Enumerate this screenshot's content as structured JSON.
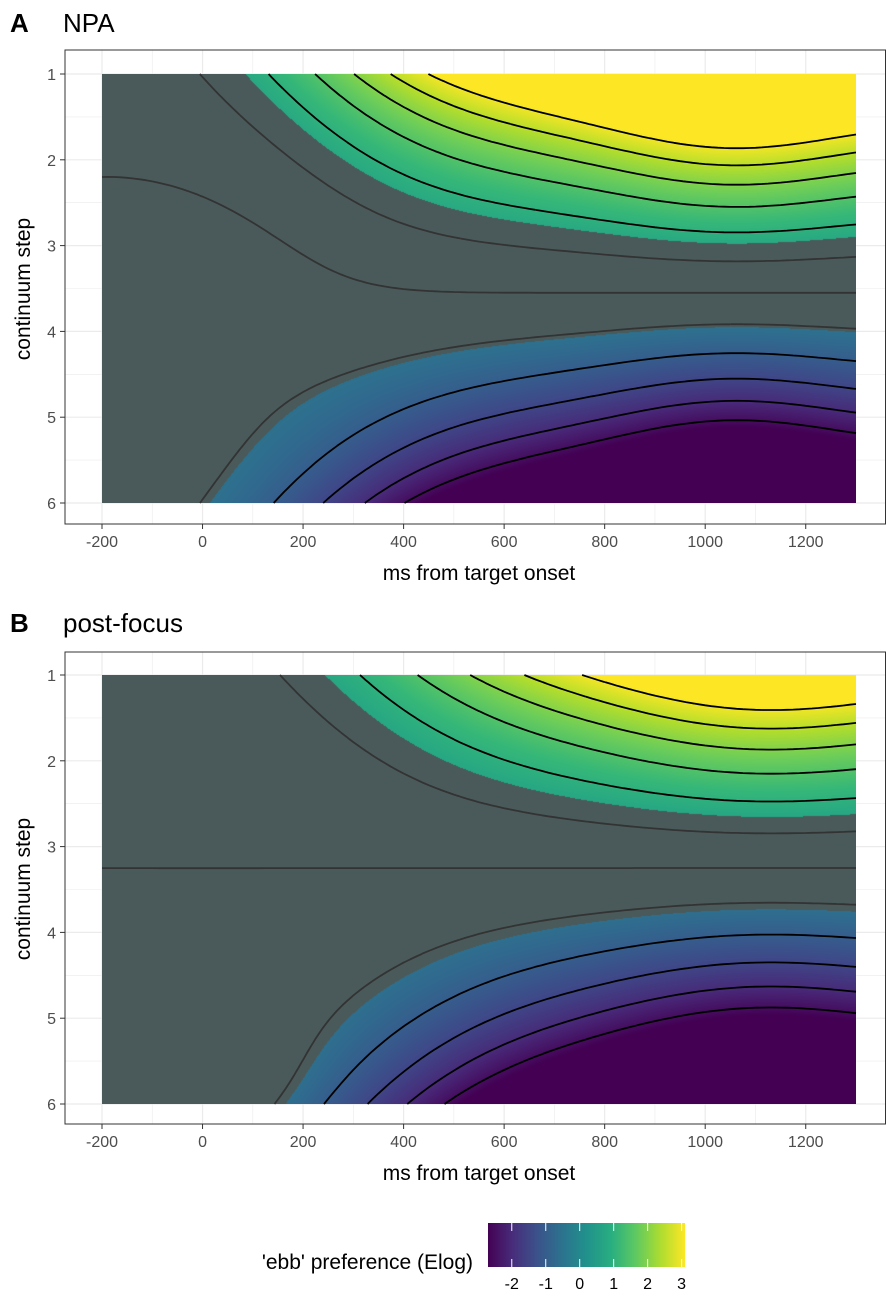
{
  "chart_data": [
    {
      "type": "heatmap",
      "panel_tag": "A",
      "title": "NPA",
      "xlabel": "ms from target onset",
      "ylabel": "continuum step",
      "x_range": [
        -200,
        1300
      ],
      "y_range": [
        1,
        6
      ],
      "y_reversed": true,
      "xticks": [
        -200,
        0,
        200,
        400,
        600,
        800,
        1000,
        1200
      ],
      "xtick_labels": [
        "-200",
        "0",
        "200",
        "400",
        "600",
        "800",
        "1000",
        "1200"
      ],
      "yticks": [
        1,
        2,
        3,
        4,
        5,
        6
      ],
      "ytick_labels": [
        "1",
        "2",
        "3",
        "4",
        "5",
        "6"
      ],
      "grid": true,
      "contours": "dashed",
      "non_significant_region": "greyed",
      "surface_peaks": {
        "max": 3.0,
        "max_at": [
          1050,
          1
        ],
        "min": -2.7,
        "min_at": [
          1100,
          6
        ]
      }
    },
    {
      "type": "heatmap",
      "panel_tag": "B",
      "title": "post-focus",
      "xlabel": "ms from target onset",
      "ylabel": "continuum step",
      "x_range": [
        -200,
        1300
      ],
      "y_range": [
        1,
        6
      ],
      "y_reversed": true,
      "xticks": [
        -200,
        0,
        200,
        400,
        600,
        800,
        1000,
        1200
      ],
      "xtick_labels": [
        "-200",
        "0",
        "200",
        "400",
        "600",
        "800",
        "1000",
        "1200"
      ],
      "yticks": [
        1,
        2,
        3,
        4,
        5,
        6
      ],
      "ytick_labels": [
        "1",
        "2",
        "3",
        "4",
        "5",
        "6"
      ],
      "grid": true,
      "contours": "dashed",
      "non_significant_region": "greyed",
      "surface_peaks": {
        "max": 2.8,
        "max_at": [
          1100,
          1
        ],
        "min": -2.9,
        "min_at": [
          1150,
          6
        ]
      }
    }
  ],
  "legend": {
    "title": "'ebb' preference (Elog)",
    "colormap": "viridis",
    "range": [
      -2.7,
      3.1
    ],
    "ticks": [
      -2,
      -1,
      0,
      1,
      2,
      3
    ],
    "tick_labels": [
      "-2",
      "-1",
      "0",
      "1",
      "2",
      "3"
    ],
    "position": "bottom"
  },
  "colors": {
    "nonsig_fill": "#4a5a5a",
    "contour_sig": "#000000",
    "contour_nonsig": "#333333",
    "gridline": "#ebebeb"
  }
}
